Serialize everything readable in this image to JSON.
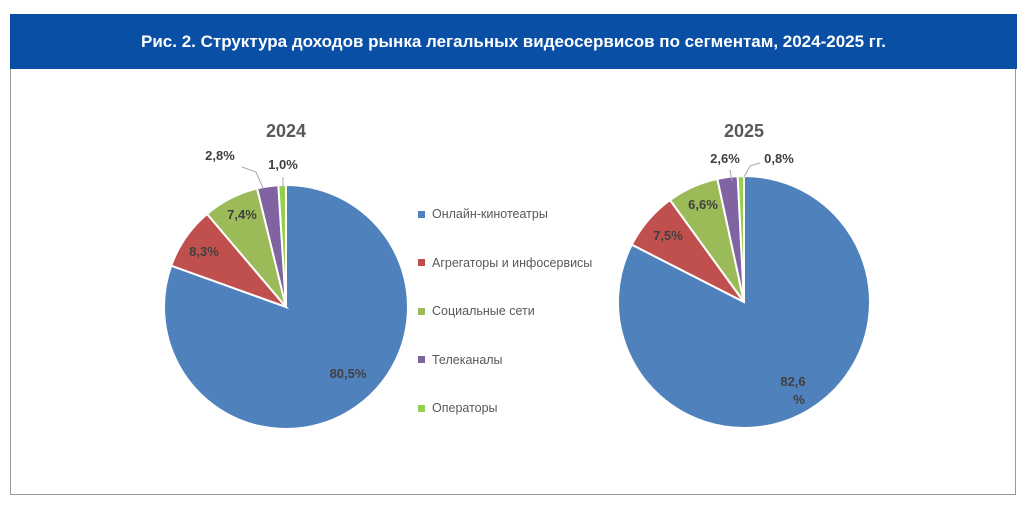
{
  "header": {
    "title": "Рис. 2. Структура доходов рынка легальных видеосервисов по сегментам, 2024-2025 гг."
  },
  "legend": {
    "items": [
      {
        "label": "Онлайн-кинотеатры",
        "color": "#4f81bd"
      },
      {
        "label": "Агрегаторы и инфосервисы",
        "color": "#c0504d"
      },
      {
        "label": "Социальные сети",
        "color": "#9bbb59"
      },
      {
        "label": "Телеканалы",
        "color": "#8064a2"
      },
      {
        "label": "Операторы",
        "color": "#92d050"
      }
    ]
  },
  "chart_data": [
    {
      "type": "pie",
      "title": "2024",
      "categories": [
        "Онлайн-кинотеатры",
        "Агрегаторы и инфосервисы",
        "Социальные сети",
        "Телеканалы",
        "Операторы"
      ],
      "values": [
        80.5,
        8.3,
        7.4,
        2.8,
        1.0
      ],
      "labels": [
        "80,5%",
        "8,3%",
        "7,4%",
        "2,8%",
        "1,0%"
      ],
      "colors": [
        "#4f81bd",
        "#c0504d",
        "#9bbb59",
        "#8064a2",
        "#92d050"
      ]
    },
    {
      "type": "pie",
      "title": "2025",
      "categories": [
        "Онлайн-кинотеатры",
        "Агрегаторы и инфосервисы",
        "Социальные сети",
        "Телеканалы",
        "Операторы"
      ],
      "values": [
        82.6,
        7.5,
        6.6,
        2.6,
        0.8
      ],
      "labels": [
        "82,6 %",
        "7,5%",
        "6,6%",
        "2,6%",
        "0,8%"
      ],
      "colors": [
        "#4f81bd",
        "#c0504d",
        "#9bbb59",
        "#8064a2",
        "#92d050"
      ]
    }
  ]
}
